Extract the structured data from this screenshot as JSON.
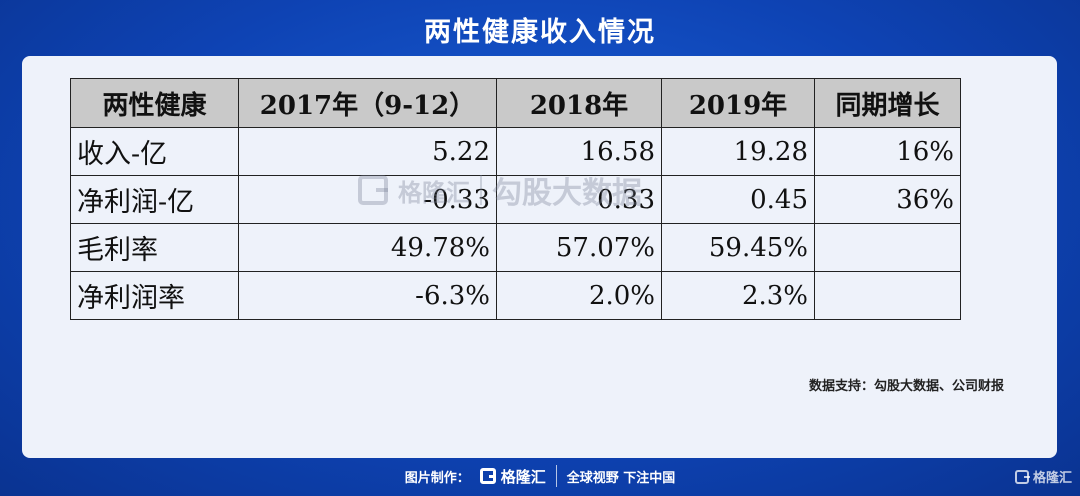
{
  "title": "两性健康收入情况",
  "table": {
    "headers": [
      "两性健康",
      "2017年（9-12）",
      "2018年",
      "2019年",
      "同期增长"
    ],
    "rows": [
      [
        "收入-亿",
        "5.22",
        "16.58",
        "19.28",
        "16%"
      ],
      [
        "净利润-亿",
        "-0.33",
        "0.33",
        "0.45",
        "36%"
      ],
      [
        "毛利率",
        "49.78%",
        "57.07%",
        "59.45%",
        ""
      ],
      [
        "净利润率",
        "-6.3%",
        "2.0%",
        "2.3%",
        ""
      ]
    ]
  },
  "watermark": {
    "brand": "格隆汇",
    "text": "勾股大数据"
  },
  "source": "数据支持：勾股大数据、公司财报",
  "footer": {
    "made_by": "图片制作：",
    "brand": "格隆汇",
    "slogan": "全球视野 下注中国"
  },
  "corner_brand": "格隆汇",
  "colors": {
    "background": "#0e43b4",
    "card": "#eef2fa",
    "header_row": "#c9c9c9"
  }
}
